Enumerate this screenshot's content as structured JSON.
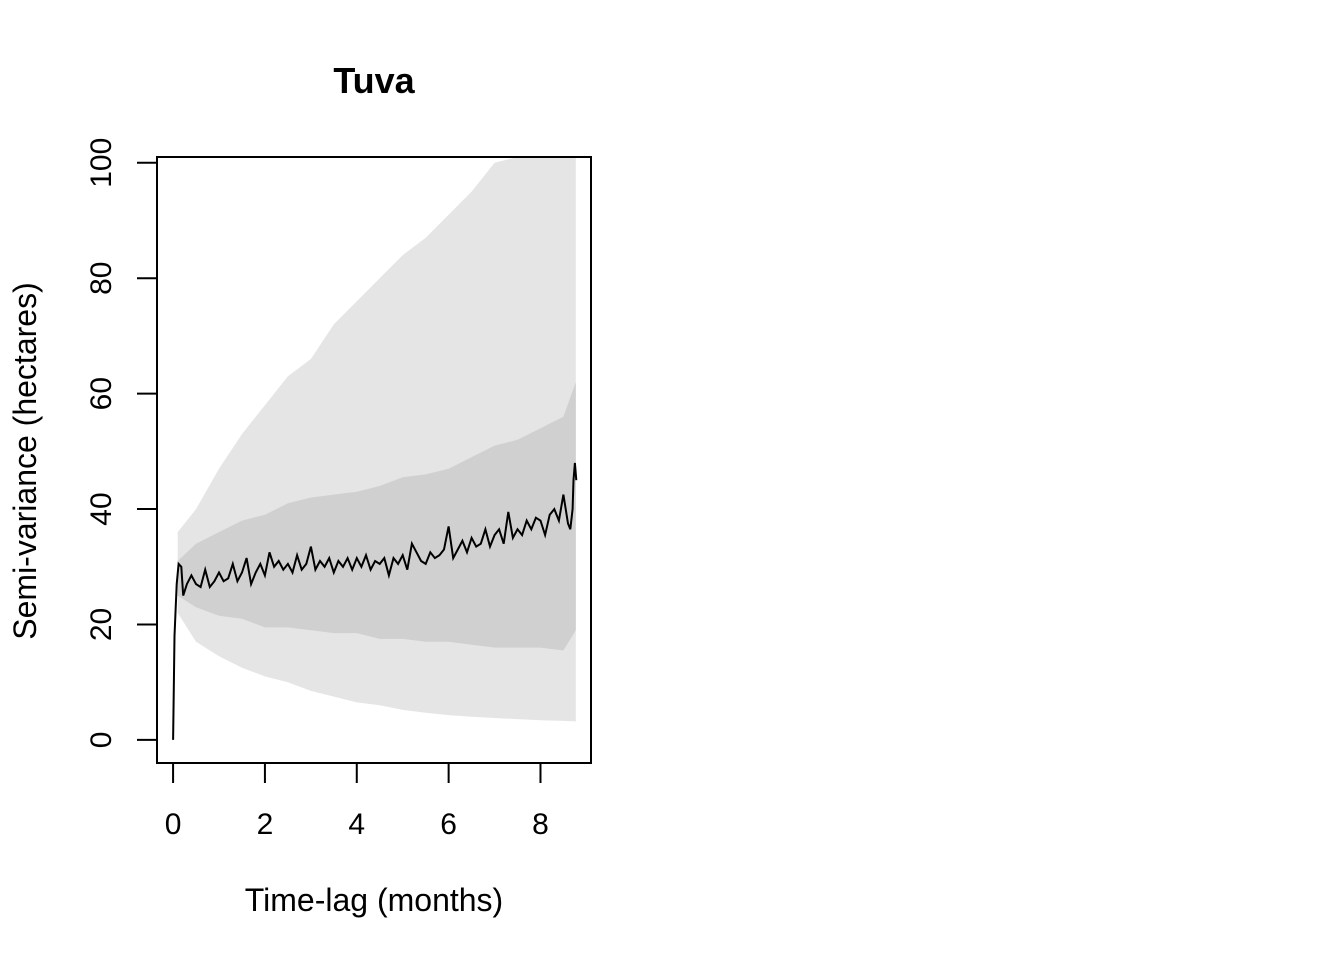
{
  "chart_data": {
    "type": "line",
    "title": "Tuva",
    "xlabel": "Time-lag (months)",
    "ylabel": "Semi-variance (hectares)",
    "xlim": [
      -0.35,
      9.1
    ],
    "ylim": [
      -4,
      101
    ],
    "x_ticks": [
      "0",
      "2",
      "4",
      "6",
      "8"
    ],
    "y_ticks": [
      "0",
      "20",
      "40",
      "60",
      "80",
      "100"
    ],
    "grid": false,
    "legend": "none",
    "colors": {
      "outer_band": "#e5e5e5",
      "inner_band": "#d0d0d0",
      "line": "#000000"
    },
    "series": [
      {
        "values": [
          [
            0,
            0
          ],
          [
            0.03,
            18
          ],
          [
            0.08,
            27
          ],
          [
            0.12,
            30.5
          ],
          [
            0.18,
            30
          ],
          [
            0.22,
            25
          ],
          [
            0.3,
            27
          ],
          [
            0.4,
            28.5
          ],
          [
            0.5,
            27
          ],
          [
            0.6,
            26.5
          ],
          [
            0.7,
            29.5
          ],
          [
            0.8,
            26.5
          ],
          [
            0.9,
            27.5
          ],
          [
            1.0,
            29
          ],
          [
            1.1,
            27.5
          ],
          [
            1.2,
            28
          ],
          [
            1.3,
            30.5
          ],
          [
            1.4,
            27.5
          ],
          [
            1.5,
            29
          ],
          [
            1.6,
            31.5
          ],
          [
            1.7,
            27
          ],
          [
            1.8,
            29
          ],
          [
            1.9,
            30.5
          ],
          [
            2.0,
            28.5
          ],
          [
            2.1,
            32.5
          ],
          [
            2.2,
            30
          ],
          [
            2.3,
            31
          ],
          [
            2.4,
            29.5
          ],
          [
            2.5,
            30.5
          ],
          [
            2.6,
            29
          ],
          [
            2.7,
            32
          ],
          [
            2.8,
            29.5
          ],
          [
            2.9,
            30.5
          ],
          [
            3.0,
            33.5
          ],
          [
            3.1,
            29.5
          ],
          [
            3.2,
            31
          ],
          [
            3.3,
            30
          ],
          [
            3.4,
            31.5
          ],
          [
            3.5,
            29
          ],
          [
            3.6,
            31
          ],
          [
            3.7,
            30
          ],
          [
            3.8,
            31.5
          ],
          [
            3.9,
            29.5
          ],
          [
            4.0,
            31.5
          ],
          [
            4.1,
            30
          ],
          [
            4.2,
            32
          ],
          [
            4.3,
            29.5
          ],
          [
            4.4,
            31
          ],
          [
            4.5,
            30.5
          ],
          [
            4.6,
            31.5
          ],
          [
            4.7,
            28.5
          ],
          [
            4.8,
            31.5
          ],
          [
            4.9,
            30.5
          ],
          [
            5.0,
            32
          ],
          [
            5.1,
            29.5
          ],
          [
            5.2,
            34
          ],
          [
            5.3,
            32.5
          ],
          [
            5.4,
            31
          ],
          [
            5.5,
            30.5
          ],
          [
            5.6,
            32.5
          ],
          [
            5.7,
            31.5
          ],
          [
            5.8,
            32
          ],
          [
            5.9,
            33
          ],
          [
            6.0,
            37
          ],
          [
            6.1,
            31.5
          ],
          [
            6.2,
            33
          ],
          [
            6.3,
            34.5
          ],
          [
            6.4,
            32.5
          ],
          [
            6.5,
            35
          ],
          [
            6.6,
            33.5
          ],
          [
            6.7,
            34
          ],
          [
            6.8,
            36.5
          ],
          [
            6.9,
            33.5
          ],
          [
            7.0,
            35.5
          ],
          [
            7.1,
            36.5
          ],
          [
            7.2,
            34
          ],
          [
            7.3,
            39.5
          ],
          [
            7.4,
            35
          ],
          [
            7.5,
            36.5
          ],
          [
            7.6,
            35.5
          ],
          [
            7.7,
            38
          ],
          [
            7.8,
            36.5
          ],
          [
            7.9,
            38.5
          ],
          [
            8.0,
            38
          ],
          [
            8.1,
            35.5
          ],
          [
            8.2,
            39
          ],
          [
            8.3,
            40
          ],
          [
            8.4,
            38
          ],
          [
            8.5,
            42.5
          ],
          [
            8.6,
            37.5
          ],
          [
            8.65,
            36.5
          ],
          [
            8.7,
            40
          ],
          [
            8.72,
            45
          ],
          [
            8.75,
            48
          ],
          [
            8.78,
            45
          ]
        ]
      }
    ],
    "outer_band": {
      "x": [
        0.1,
        0.5,
        1,
        1.5,
        2,
        2.5,
        3,
        3.5,
        4,
        4.5,
        5,
        5.5,
        6,
        6.5,
        7,
        7.5,
        8,
        8.5,
        8.77
      ],
      "lower": [
        22,
        17,
        14.5,
        12.5,
        11,
        10,
        8.5,
        7.5,
        6.5,
        6,
        5.2,
        4.7,
        4.3,
        4,
        3.8,
        3.6,
        3.4,
        3.3,
        3.2
      ],
      "upper": [
        36,
        40,
        47,
        53,
        58,
        63,
        66,
        72,
        76,
        80,
        84,
        87,
        91,
        95,
        100,
        101,
        101,
        101,
        101
      ]
    },
    "inner_band": {
      "x": [
        0.1,
        0.5,
        1,
        1.5,
        2,
        2.5,
        3,
        3.5,
        4,
        4.5,
        5,
        5.5,
        6,
        6.5,
        7,
        7.5,
        8,
        8.5,
        8.77
      ],
      "lower": [
        25,
        23,
        21.5,
        21,
        19.5,
        19.5,
        19,
        18.5,
        18.5,
        17.5,
        17.5,
        17,
        17,
        16.5,
        16,
        16,
        16,
        15.5,
        19
      ],
      "upper": [
        31,
        34,
        36,
        38,
        39,
        41,
        42,
        42.5,
        43,
        44,
        45.5,
        46,
        47,
        49,
        51,
        52,
        54,
        56,
        62
      ]
    }
  }
}
